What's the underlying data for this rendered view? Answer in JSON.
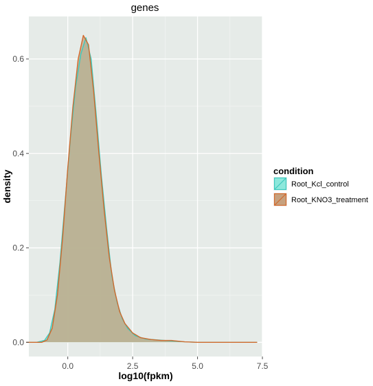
{
  "chart_data": {
    "type": "area",
    "title": "genes",
    "xlabel": "log10(fpkm)",
    "ylabel": "density",
    "xlim": [
      -1.5,
      7.5
    ],
    "ylim": [
      -0.03,
      0.69
    ],
    "x_ticks": [
      0.0,
      2.5,
      5.0,
      7.5
    ],
    "x_tick_labels": [
      "0.0",
      "2.5",
      "5.0",
      "7.5"
    ],
    "y_ticks": [
      0.0,
      0.2,
      0.4,
      0.6
    ],
    "y_tick_labels": [
      "0.0",
      "0.2",
      "0.4",
      "0.6"
    ],
    "grid": true,
    "legend": {
      "title": "condition",
      "position": "right"
    },
    "series": [
      {
        "name": "Root_Kcl_control",
        "fill": "#8de8dc",
        "stroke": "#3cc9bd",
        "points": [
          [
            -1.6,
            0.0
          ],
          [
            -1.2,
            0.0
          ],
          [
            -0.9,
            0.004
          ],
          [
            -0.7,
            0.02
          ],
          [
            -0.5,
            0.07
          ],
          [
            -0.3,
            0.17
          ],
          [
            -0.1,
            0.3
          ],
          [
            0.1,
            0.43
          ],
          [
            0.3,
            0.54
          ],
          [
            0.5,
            0.61
          ],
          [
            0.7,
            0.645
          ],
          [
            0.9,
            0.6
          ],
          [
            1.1,
            0.48
          ],
          [
            1.3,
            0.35
          ],
          [
            1.5,
            0.24
          ],
          [
            1.7,
            0.14
          ],
          [
            1.9,
            0.085
          ],
          [
            2.1,
            0.05
          ],
          [
            2.3,
            0.03
          ],
          [
            2.6,
            0.014
          ],
          [
            3.0,
            0.007
          ],
          [
            3.5,
            0.005
          ],
          [
            4.0,
            0.003
          ],
          [
            4.5,
            0.001
          ],
          [
            5.0,
            0.0
          ],
          [
            7.3,
            0.0
          ]
        ]
      },
      {
        "name": "Root_KNO3_treatment",
        "fill": "#c7a17e",
        "stroke": "#d2692c",
        "points": [
          [
            -1.6,
            0.0
          ],
          [
            -1.0,
            0.0
          ],
          [
            -0.8,
            0.005
          ],
          [
            -0.6,
            0.03
          ],
          [
            -0.4,
            0.1
          ],
          [
            -0.2,
            0.22
          ],
          [
            0.0,
            0.37
          ],
          [
            0.2,
            0.5
          ],
          [
            0.4,
            0.6
          ],
          [
            0.6,
            0.65
          ],
          [
            0.8,
            0.63
          ],
          [
            1.0,
            0.53
          ],
          [
            1.2,
            0.4
          ],
          [
            1.4,
            0.28
          ],
          [
            1.6,
            0.18
          ],
          [
            1.8,
            0.11
          ],
          [
            2.0,
            0.065
          ],
          [
            2.2,
            0.04
          ],
          [
            2.5,
            0.02
          ],
          [
            2.8,
            0.01
          ],
          [
            3.2,
            0.006
          ],
          [
            3.6,
            0.004
          ],
          [
            4.0,
            0.004
          ],
          [
            4.5,
            0.001
          ],
          [
            5.0,
            0.0
          ],
          [
            7.3,
            0.0
          ]
        ]
      }
    ]
  }
}
